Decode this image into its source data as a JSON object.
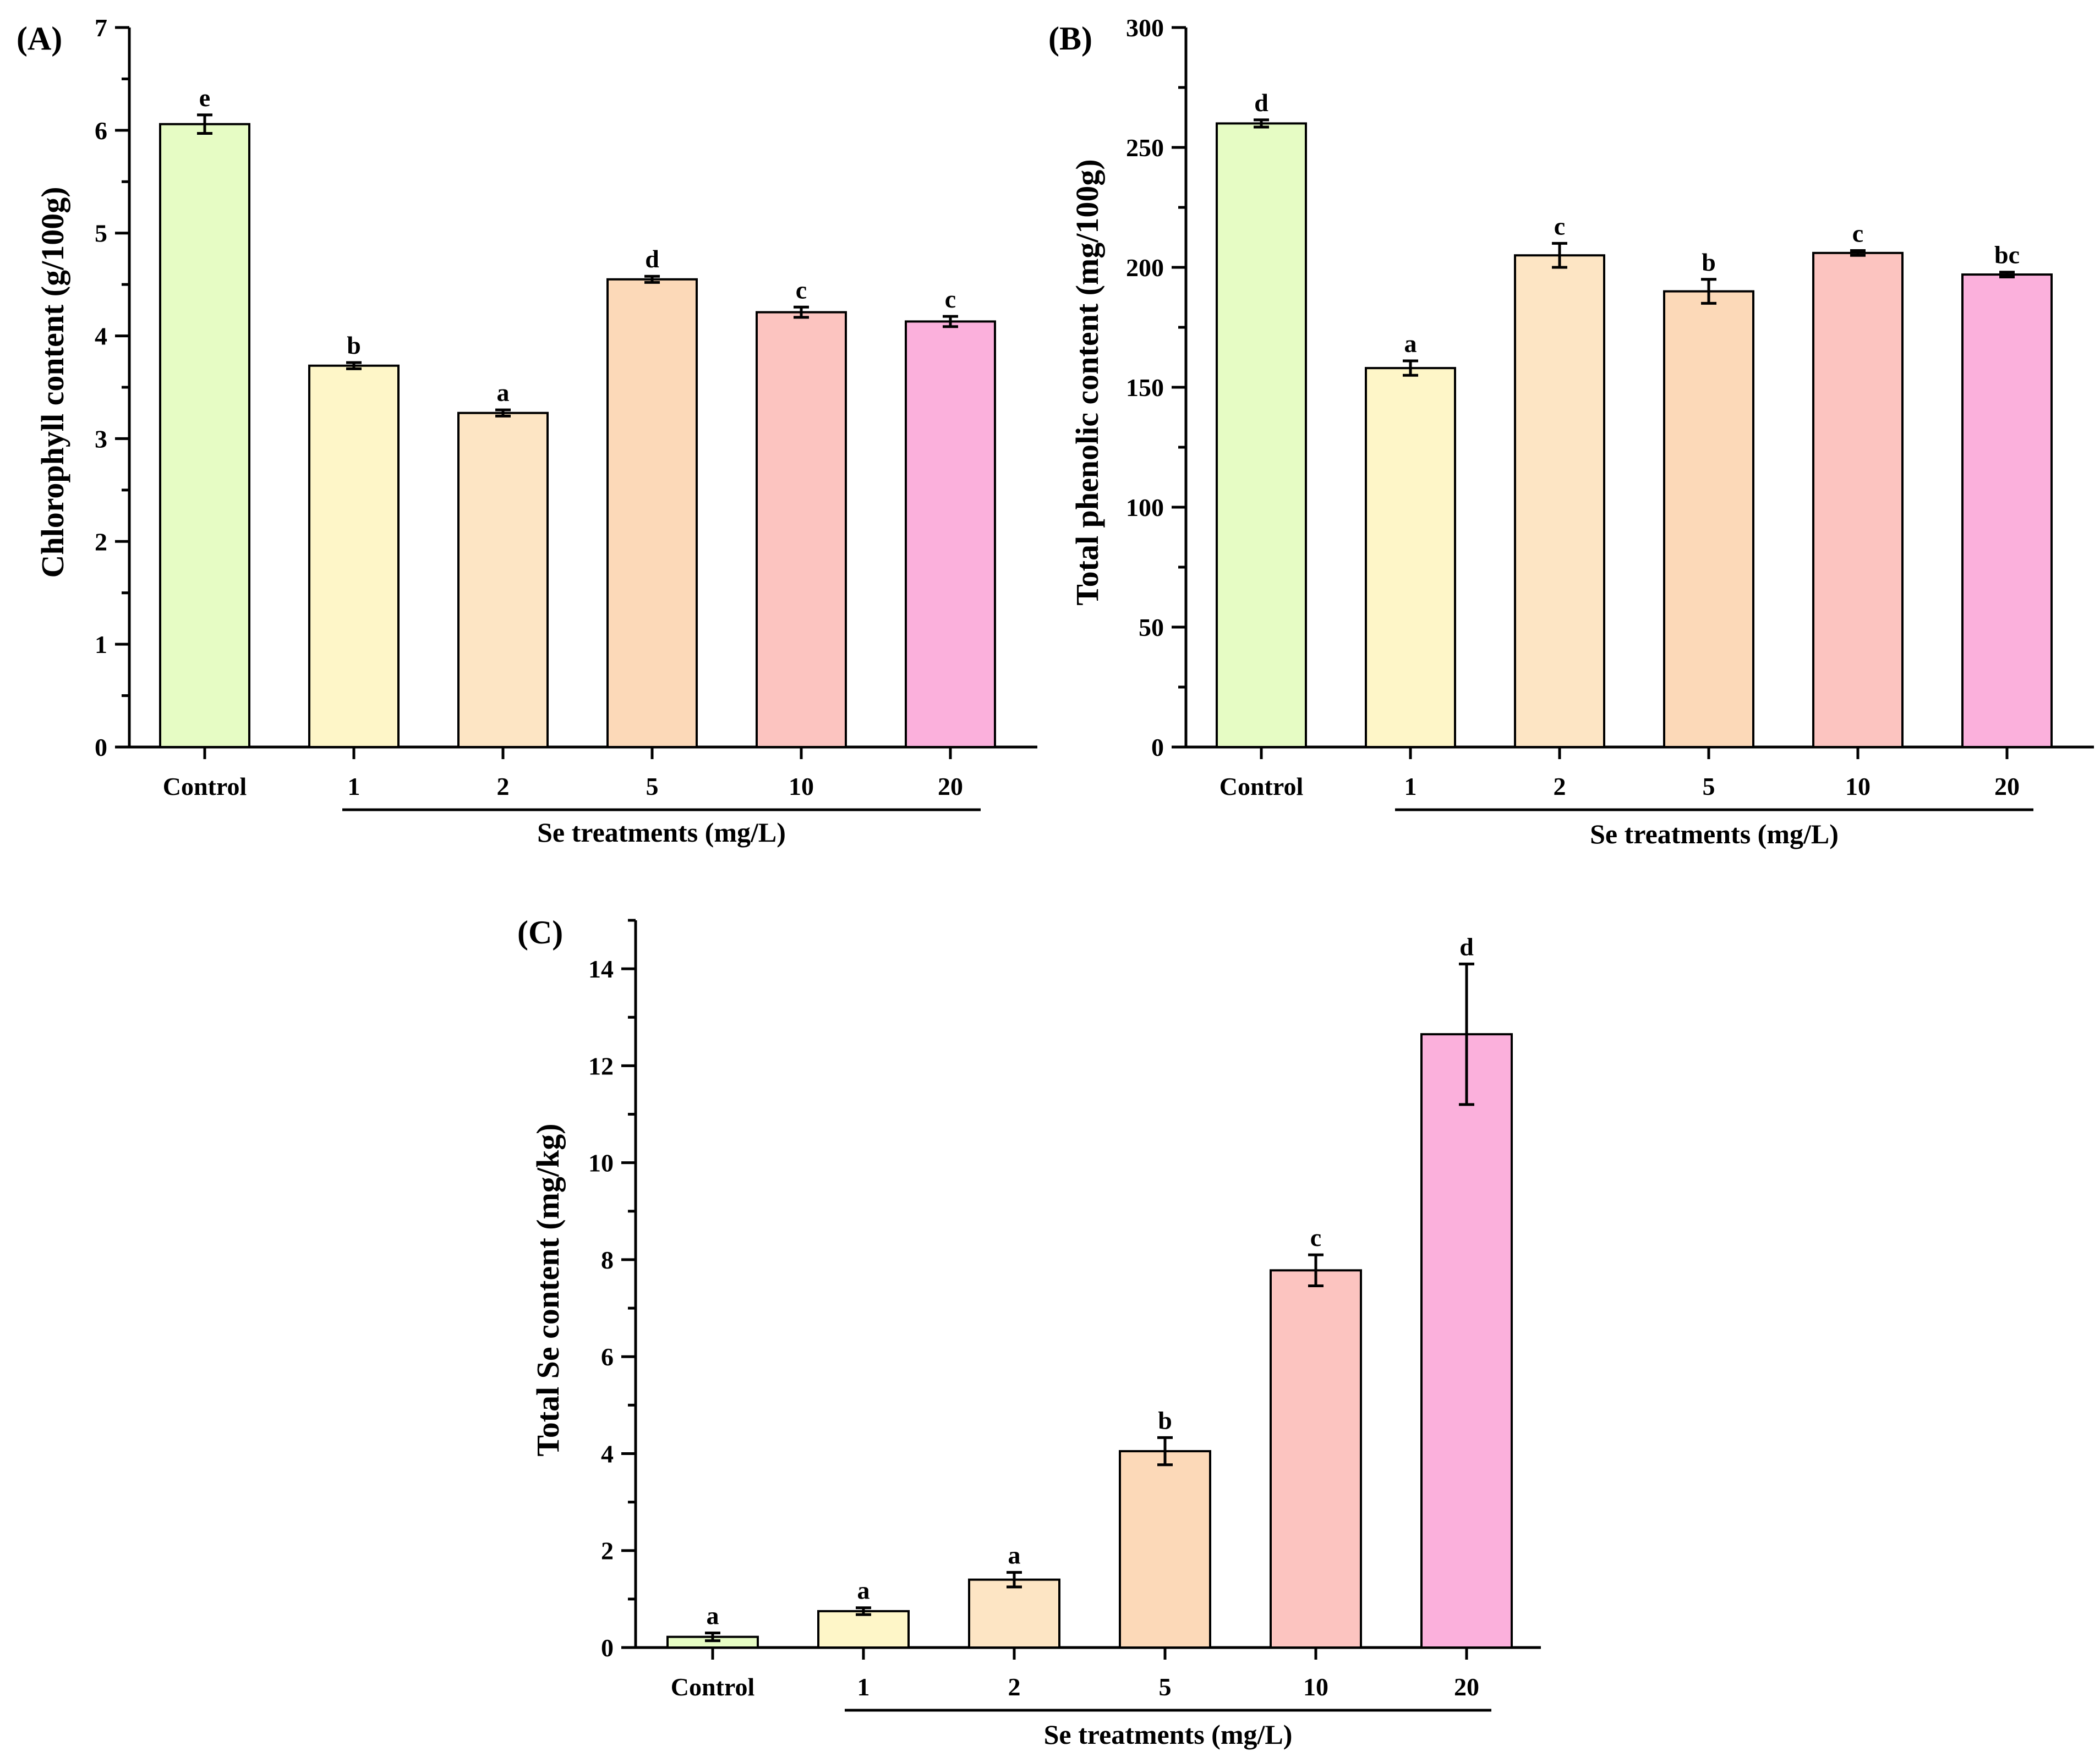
{
  "colors": [
    "#e6fcc4",
    "#fef6c8",
    "#fde5c4",
    "#fcd9b8",
    "#fcc4c0",
    "#fbb0dc"
  ],
  "chart_data": [
    {
      "type": "bar",
      "panel": "(A)",
      "categories": [
        "Control",
        "1",
        "2",
        "5",
        "10",
        "20"
      ],
      "values": [
        6.06,
        3.71,
        3.25,
        4.55,
        4.23,
        4.14
      ],
      "errors": [
        0.09,
        0.03,
        0.03,
        0.03,
        0.05,
        0.05
      ],
      "letters": [
        "e",
        "b",
        "a",
        "d",
        "c",
        "c"
      ],
      "ylabel": "Chlorophyll content (g/100g)",
      "xlabel": "Se treatments (mg/L)",
      "ylim": [
        0,
        7
      ],
      "yticks": [
        0,
        1,
        2,
        3,
        4,
        5,
        6,
        7
      ]
    },
    {
      "type": "bar",
      "panel": "(B)",
      "categories": [
        "Control",
        "1",
        "2",
        "5",
        "10",
        "20"
      ],
      "values": [
        260,
        158,
        205,
        190,
        206,
        197
      ],
      "errors": [
        1.5,
        3,
        5,
        5,
        1,
        1
      ],
      "letters": [
        "d",
        "a",
        "c",
        "b",
        "c",
        "bc"
      ],
      "ylabel": "Total phenolic content (mg/100g)",
      "xlabel": "Se treatments (mg/L)",
      "ylim": [
        0,
        300
      ],
      "yticks": [
        0,
        50,
        100,
        150,
        200,
        250,
        300
      ]
    },
    {
      "type": "bar",
      "panel": "(C)",
      "categories": [
        "Control",
        "1",
        "2",
        "5",
        "10",
        "20"
      ],
      "values": [
        0.22,
        0.75,
        1.4,
        4.05,
        7.78,
        12.65
      ],
      "errors": [
        0.08,
        0.07,
        0.15,
        0.28,
        0.32,
        1.45
      ],
      "letters": [
        "a",
        "a",
        "a",
        "b",
        "c",
        "d"
      ],
      "ylabel": "Total Se content (mg/kg)",
      "xlabel": "Se treatments (mg/L)",
      "ylim": [
        0,
        15
      ],
      "yticks": [
        0,
        2,
        4,
        6,
        8,
        10,
        12,
        14
      ]
    }
  ]
}
